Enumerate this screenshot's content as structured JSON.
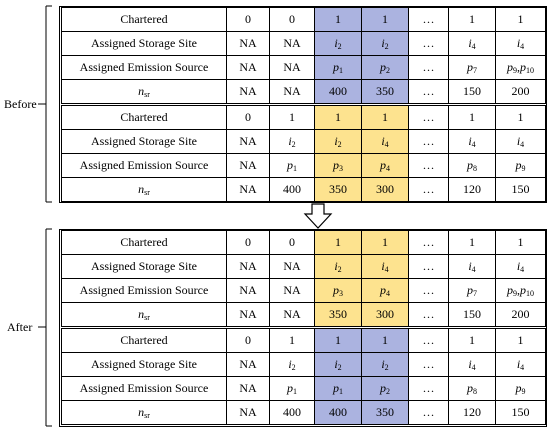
{
  "groups": [
    {
      "label": "Before",
      "tables": [
        {
          "highlight_color": "#abb3e0",
          "rows": [
            [
              "Chartered",
              "0",
              "0",
              "1",
              "1",
              "…",
              "1",
              "1"
            ],
            [
              "Assigned Storage Site",
              "NA",
              "NA",
              [
                {
                  "t": "i",
                  "sub": "2"
                }
              ],
              [
                {
                  "t": "i",
                  "sub": "2"
                }
              ],
              "…",
              [
                {
                  "t": "i",
                  "sub": "4"
                }
              ],
              [
                {
                  "t": "i",
                  "sub": "4"
                }
              ]
            ],
            [
              "Assigned Emission Source",
              "NA",
              "NA",
              [
                {
                  "t": "p",
                  "sub": "1"
                }
              ],
              [
                {
                  "t": "p",
                  "sub": "2"
                }
              ],
              "…",
              [
                {
                  "t": "p",
                  "sub": "7"
                }
              ],
              [
                {
                  "t": "p",
                  "sub": "9"
                },
                ",",
                {
                  "t": "p",
                  "sub": "10"
                }
              ]
            ],
            [
              [
                {
                  "t": "n",
                  "sub": "sr"
                }
              ],
              "NA",
              "NA",
              "400",
              "350",
              "…",
              "150",
              "200"
            ]
          ]
        },
        {
          "highlight_color": "#fde38f",
          "rows": [
            [
              "Chartered",
              "0",
              "1",
              "1",
              "1",
              "…",
              "1",
              "1"
            ],
            [
              "Assigned Storage Site",
              "NA",
              [
                {
                  "t": "i",
                  "sub": "2"
                }
              ],
              [
                {
                  "t": "i",
                  "sub": "2"
                }
              ],
              [
                {
                  "t": "i",
                  "sub": "4"
                }
              ],
              "…",
              [
                {
                  "t": "i",
                  "sub": "4"
                }
              ],
              [
                {
                  "t": "i",
                  "sub": "4"
                }
              ]
            ],
            [
              "Assigned Emission Source",
              "NA",
              [
                {
                  "t": "p",
                  "sub": "1"
                }
              ],
              [
                {
                  "t": "p",
                  "sub": "3"
                }
              ],
              [
                {
                  "t": "p",
                  "sub": "4"
                }
              ],
              "…",
              [
                {
                  "t": "p",
                  "sub": "8"
                }
              ],
              [
                {
                  "t": "p",
                  "sub": "9"
                }
              ]
            ],
            [
              [
                {
                  "t": "n",
                  "sub": "sr"
                }
              ],
              "NA",
              "400",
              "350",
              "300",
              "…",
              "120",
              "150"
            ]
          ]
        }
      ]
    },
    {
      "label": "After",
      "tables": [
        {
          "highlight_color": "#fde38f",
          "rows": [
            [
              "Chartered",
              "0",
              "0",
              "1",
              "1",
              "…",
              "1",
              "1"
            ],
            [
              "Assigned Storage Site",
              "NA",
              "NA",
              [
                {
                  "t": "i",
                  "sub": "2"
                }
              ],
              [
                {
                  "t": "i",
                  "sub": "4"
                }
              ],
              "…",
              [
                {
                  "t": "i",
                  "sub": "4"
                }
              ],
              [
                {
                  "t": "i",
                  "sub": "4"
                }
              ]
            ],
            [
              "Assigned Emission Source",
              "NA",
              "NA",
              [
                {
                  "t": "p",
                  "sub": "3"
                }
              ],
              [
                {
                  "t": "p",
                  "sub": "4"
                }
              ],
              "…",
              [
                {
                  "t": "p",
                  "sub": "7"
                }
              ],
              [
                {
                  "t": "p",
                  "sub": "9"
                },
                ",",
                {
                  "t": "p",
                  "sub": "10"
                }
              ]
            ],
            [
              [
                {
                  "t": "n",
                  "sub": "sr"
                }
              ],
              "NA",
              "NA",
              "350",
              "300",
              "…",
              "150",
              "200"
            ]
          ]
        },
        {
          "highlight_color": "#abb3e0",
          "rows": [
            [
              "Chartered",
              "0",
              "1",
              "1",
              "1",
              "…",
              "1",
              "1"
            ],
            [
              "Assigned Storage Site",
              "NA",
              [
                {
                  "t": "i",
                  "sub": "2"
                }
              ],
              [
                {
                  "t": "i",
                  "sub": "2"
                }
              ],
              [
                {
                  "t": "i",
                  "sub": "2"
                }
              ],
              "…",
              [
                {
                  "t": "i",
                  "sub": "4"
                }
              ],
              [
                {
                  "t": "i",
                  "sub": "4"
                }
              ]
            ],
            [
              "Assigned Emission Source",
              "NA",
              [
                {
                  "t": "p",
                  "sub": "1"
                }
              ],
              [
                {
                  "t": "p",
                  "sub": "1"
                }
              ],
              [
                {
                  "t": "p",
                  "sub": "2"
                }
              ],
              "…",
              [
                {
                  "t": "p",
                  "sub": "8"
                }
              ],
              [
                {
                  "t": "p",
                  "sub": "9"
                }
              ]
            ],
            [
              [
                {
                  "t": "n",
                  "sub": "sr"
                }
              ],
              "NA",
              "400",
              "400",
              "350",
              "…",
              "120",
              "150"
            ]
          ]
        }
      ]
    }
  ]
}
